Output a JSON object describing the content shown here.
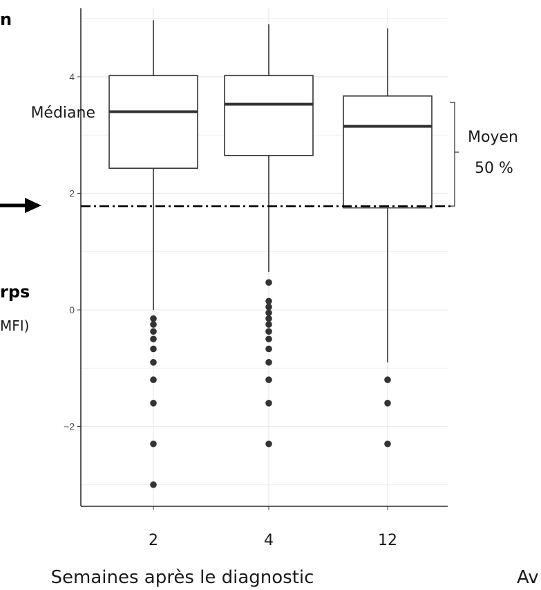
{
  "chart_data": {
    "type": "box",
    "categories": [
      "2",
      "4",
      "12"
    ],
    "boxes": [
      {
        "category": "2",
        "whisker_low": 0.0,
        "q1": 2.43,
        "median": 3.4,
        "q3": 4.02,
        "whisker_high": 4.97,
        "outliers": [
          -0.15,
          -0.25,
          -0.37,
          -0.5,
          -0.67,
          -0.9,
          -1.2,
          -1.6,
          -2.3,
          -3.0
        ]
      },
      {
        "category": "4",
        "whisker_low": 0.65,
        "q1": 2.65,
        "median": 3.53,
        "q3": 4.02,
        "whisker_high": 4.9,
        "outliers": [
          0.47,
          0.15,
          0.05,
          -0.05,
          -0.15,
          -0.25,
          -0.37,
          -0.5,
          -0.67,
          -0.9,
          -1.2,
          -1.6,
          -2.3
        ]
      },
      {
        "category": "12",
        "whisker_low": -0.9,
        "q1": 1.75,
        "median": 3.15,
        "q3": 3.67,
        "whisker_high": 4.83,
        "outliers": [
          -1.2,
          -1.6,
          -2.3
        ]
      }
    ],
    "threshold": 1.78,
    "ylim": [
      -3.4,
      5.3
    ],
    "yticks": [
      -2,
      0,
      2,
      4
    ],
    "xlabel": "Semaines après le diagnostic",
    "grid": true
  },
  "annotations": {
    "median_label": "Médiane",
    "iqr_label_line1": "Moyen",
    "iqr_label_line2": "50 %",
    "left_title_fragment": "n",
    "left_label_bold": "rps",
    "left_label_sub": "MFI)",
    "right_fragment": "Av"
  },
  "colors": {
    "box_fill": "#ffffff",
    "box_stroke": "#333333",
    "median": "#333333",
    "outlier": "#333333",
    "grid": "#ebebeb",
    "threshold": "#000000"
  }
}
